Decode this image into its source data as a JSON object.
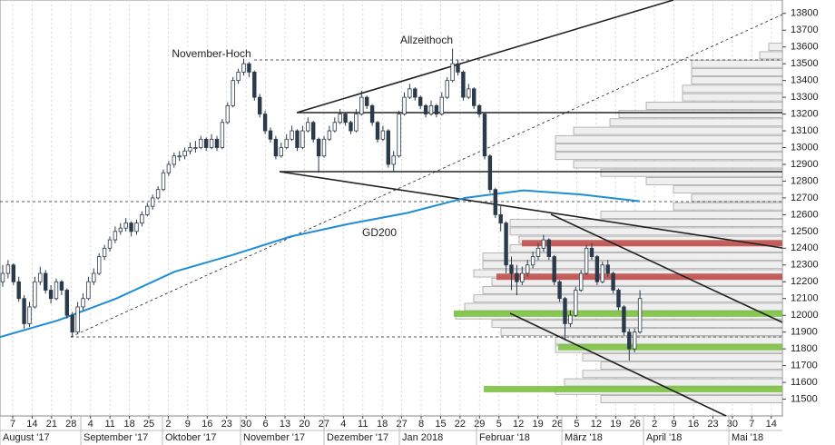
{
  "chart_data": {
    "type": "candlestick",
    "ylim": [
      11400,
      13880
    ],
    "yticks": [
      11500,
      11600,
      11700,
      11800,
      11900,
      12000,
      12100,
      12200,
      12300,
      12400,
      12500,
      12600,
      12700,
      12800,
      12900,
      13000,
      13100,
      13200,
      13300,
      13400,
      13500,
      13600,
      13700,
      13800
    ],
    "x_labels": [
      "7",
      "14",
      "21",
      "28",
      "4",
      "11",
      "18",
      "25",
      "2",
      "9",
      "16",
      "23",
      "30",
      "6",
      "13",
      "20",
      "27",
      "4",
      "11",
      "18",
      "27",
      "8",
      "15",
      "22",
      "29",
      "5",
      "12",
      "19",
      "26",
      "5",
      "12",
      "19",
      "26",
      "2",
      "9",
      "16",
      "23",
      "30",
      "7",
      "14"
    ],
    "months": [
      "August '17",
      "September '17",
      "Oktober '17",
      "November '17",
      "Dezember '17",
      "Jan 2018",
      "Februar '18",
      "März '18",
      "April '18",
      "Mai '18"
    ],
    "annotations": [
      "November-Hoch",
      "Allzeithoch"
    ],
    "up_color": "#ffffff",
    "down_color": "#2b3a4a",
    "candles": [
      [
        12200,
        12300,
        12170,
        12250
      ],
      [
        12250,
        12330,
        12220,
        12300
      ],
      [
        12300,
        12310,
        12180,
        12200
      ],
      [
        12200,
        12230,
        12080,
        12100
      ],
      [
        12100,
        12120,
        11920,
        11950
      ],
      [
        11950,
        12080,
        11930,
        12050
      ],
      [
        12050,
        12230,
        12040,
        12200
      ],
      [
        12200,
        12290,
        12180,
        12250
      ],
      [
        12250,
        12270,
        12130,
        12150
      ],
      [
        12150,
        12180,
        12070,
        12100
      ],
      [
        12100,
        12220,
        12090,
        12200
      ],
      [
        12200,
        12210,
        12120,
        12150
      ],
      [
        12150,
        12160,
        11980,
        12000
      ],
      [
        12000,
        12020,
        11870,
        11900
      ],
      [
        11900,
        12080,
        11890,
        12050
      ],
      [
        12050,
        12130,
        12030,
        12100
      ],
      [
        12100,
        12230,
        12090,
        12200
      ],
      [
        12200,
        12280,
        12180,
        12250
      ],
      [
        12250,
        12370,
        12240,
        12350
      ],
      [
        12350,
        12420,
        12330,
        12400
      ],
      [
        12400,
        12470,
        12380,
        12450
      ],
      [
        12450,
        12530,
        12430,
        12500
      ],
      [
        12500,
        12550,
        12480,
        12520
      ],
      [
        12520,
        12580,
        12500,
        12550
      ],
      [
        12550,
        12560,
        12470,
        12500
      ],
      [
        12500,
        12570,
        12480,
        12550
      ],
      [
        12550,
        12620,
        12530,
        12600
      ],
      [
        12600,
        12670,
        12590,
        12650
      ],
      [
        12650,
        12720,
        12630,
        12700
      ],
      [
        12700,
        12770,
        12690,
        12750
      ],
      [
        12750,
        12870,
        12740,
        12850
      ],
      [
        12850,
        12920,
        12830,
        12900
      ],
      [
        12900,
        12970,
        12880,
        12950
      ],
      [
        12950,
        12980,
        12920,
        12950
      ],
      [
        12950,
        13000,
        12930,
        12980
      ],
      [
        12980,
        13030,
        12960,
        13000
      ],
      [
        13000,
        13040,
        12970,
        13000
      ],
      [
        13000,
        13070,
        12990,
        13050
      ],
      [
        13050,
        13060,
        12980,
        13000
      ],
      [
        13000,
        13080,
        12990,
        13050
      ],
      [
        13050,
        13070,
        12980,
        13000
      ],
      [
        13000,
        13170,
        12990,
        13150
      ],
      [
        13150,
        13270,
        13140,
        13250
      ],
      [
        13250,
        13420,
        13240,
        13400
      ],
      [
        13400,
        13470,
        13380,
        13450
      ],
      [
        13450,
        13530,
        13430,
        13500
      ],
      [
        13500,
        13510,
        13420,
        13450
      ],
      [
        13450,
        13460,
        13280,
        13300
      ],
      [
        13300,
        13320,
        13180,
        13200
      ],
      [
        13200,
        13220,
        13080,
        13100
      ],
      [
        13100,
        13120,
        13030,
        13050
      ],
      [
        13050,
        13070,
        12930,
        12950
      ],
      [
        12950,
        13030,
        12940,
        13000
      ],
      [
        13000,
        13080,
        12990,
        13050
      ],
      [
        13050,
        13130,
        13040,
        13100
      ],
      [
        13100,
        13110,
        12980,
        13000
      ],
      [
        13000,
        13130,
        12990,
        13100
      ],
      [
        13100,
        13180,
        13090,
        13150
      ],
      [
        13150,
        13160,
        13030,
        13050
      ],
      [
        13050,
        13060,
        12850,
        12950
      ],
      [
        12950,
        13070,
        12940,
        13050
      ],
      [
        13050,
        13130,
        13040,
        13100
      ],
      [
        13100,
        13180,
        13090,
        13150
      ],
      [
        13150,
        13230,
        13140,
        13200
      ],
      [
        13200,
        13210,
        13130,
        13150
      ],
      [
        13150,
        13160,
        13080,
        13100
      ],
      [
        13100,
        13230,
        13090,
        13200
      ],
      [
        13200,
        13340,
        13190,
        13300
      ],
      [
        13300,
        13310,
        13230,
        13250
      ],
      [
        13250,
        13260,
        13130,
        13150
      ],
      [
        13150,
        13160,
        13030,
        13050
      ],
      [
        13050,
        13130,
        13040,
        13100
      ],
      [
        13100,
        13110,
        12880,
        12900
      ],
      [
        12900,
        12980,
        12860,
        12950
      ],
      [
        12950,
        13220,
        12940,
        13200
      ],
      [
        13200,
        13330,
        13190,
        13300
      ],
      [
        13300,
        13380,
        13290,
        13350
      ],
      [
        13350,
        13360,
        13280,
        13300
      ],
      [
        13300,
        13310,
        13230,
        13250
      ],
      [
        13250,
        13260,
        13180,
        13200
      ],
      [
        13200,
        13280,
        13190,
        13250
      ],
      [
        13250,
        13260,
        13180,
        13200
      ],
      [
        13200,
        13330,
        13190,
        13300
      ],
      [
        13300,
        13420,
        13290,
        13400
      ],
      [
        13400,
        13590,
        13390,
        13500
      ],
      [
        13500,
        13520,
        13430,
        13450
      ],
      [
        13450,
        13460,
        13280,
        13300
      ],
      [
        13300,
        13380,
        13290,
        13350
      ],
      [
        13350,
        13360,
        13230,
        13250
      ],
      [
        13250,
        13260,
        13180,
        13200
      ],
      [
        13200,
        13210,
        12930,
        12950
      ],
      [
        12950,
        12960,
        12730,
        12750
      ],
      [
        12750,
        12760,
        12580,
        12600
      ],
      [
        12600,
        12650,
        12500,
        12550
      ],
      [
        12550,
        12560,
        12250,
        12300
      ],
      [
        12300,
        12350,
        12150,
        12250
      ],
      [
        12250,
        12300,
        12120,
        12200
      ],
      [
        12200,
        12290,
        12180,
        12250
      ],
      [
        12250,
        12330,
        12230,
        12300
      ],
      [
        12300,
        12380,
        12280,
        12350
      ],
      [
        12350,
        12430,
        12330,
        12400
      ],
      [
        12400,
        12480,
        12380,
        12450
      ],
      [
        12450,
        12460,
        12330,
        12350
      ],
      [
        12350,
        12360,
        12180,
        12200
      ],
      [
        12200,
        12210,
        12080,
        12100
      ],
      [
        12100,
        12110,
        11850,
        11950
      ],
      [
        11950,
        12030,
        11930,
        12000
      ],
      [
        12000,
        12170,
        11990,
        12150
      ],
      [
        12150,
        12270,
        12140,
        12250
      ],
      [
        12250,
        12420,
        12240,
        12400
      ],
      [
        12400,
        12430,
        12330,
        12350
      ],
      [
        12350,
        12360,
        12180,
        12200
      ],
      [
        12200,
        12320,
        12190,
        12300
      ],
      [
        12300,
        12330,
        12230,
        12250
      ],
      [
        12250,
        12260,
        12130,
        12150
      ],
      [
        12150,
        12160,
        12030,
        12050
      ],
      [
        12050,
        12060,
        11880,
        11900
      ],
      [
        11900,
        11920,
        11730,
        11800
      ],
      [
        11800,
        11920,
        11780,
        11900
      ],
      [
        11900,
        12150,
        11890,
        12100
      ]
    ],
    "gd200": {
      "name": "GD200",
      "color": "#1f8dd6",
      "values": [
        11870,
        11970,
        12100,
        12260,
        12360,
        12470,
        12545,
        12610,
        12700,
        12745,
        12720,
        12680
      ]
    },
    "zones": [
      {
        "color": "#c0504d",
        "value": 12430
      },
      {
        "color": "#c0504d",
        "value": 12230
      },
      {
        "color": "#7dc242",
        "value": 12010
      },
      {
        "color": "#7dc242",
        "value": 11810
      },
      {
        "color": "#7dc242",
        "value": 11560
      }
    ],
    "profile": {
      "levels": [
        11500,
        11550,
        11600,
        11650,
        11700,
        11750,
        11800,
        11850,
        11900,
        11950,
        12000,
        12050,
        12100,
        12150,
        12200,
        12250,
        12300,
        12350,
        12400,
        12450,
        12500,
        12550,
        12600,
        12650,
        12700,
        12750,
        12800,
        12850,
        12900,
        12950,
        13000,
        13050,
        13100,
        13150,
        13200,
        13250,
        13300,
        13350,
        13400,
        13450,
        13500,
        13550,
        13600
      ],
      "values": [
        200,
        250,
        240,
        220,
        200,
        220,
        250,
        250,
        310,
        320,
        360,
        350,
        340,
        330,
        320,
        340,
        330,
        330,
        300,
        290,
        300,
        300,
        200,
        120,
        100,
        120,
        150,
        200,
        230,
        250,
        250,
        250,
        230,
        190,
        180,
        150,
        110,
        110,
        100,
        100,
        100,
        25,
        15
      ]
    }
  }
}
